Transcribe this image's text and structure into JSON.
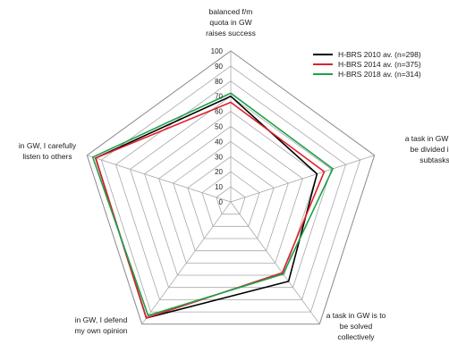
{
  "chart_data": {
    "type": "radar",
    "categories": [
      [
        "balanced f/m",
        "quota in GW",
        "raises success"
      ],
      [
        "a task in GW is to",
        "be divided into",
        "subtasks"
      ],
      [
        "a task in GW is to",
        "be solved",
        "collectively"
      ],
      [
        "in GW, I defend",
        "my own opinion"
      ],
      [
        "in GW, I carefully",
        "listen to others"
      ]
    ],
    "rlim": [
      0,
      100
    ],
    "ticks": [
      0,
      10,
      20,
      30,
      40,
      50,
      60,
      70,
      80,
      90,
      100
    ],
    "grid": true,
    "legend_position": "top-right",
    "series": [
      {
        "name": "H-BRS 2010 av. (n=298)",
        "color": "#000000",
        "values": [
          70,
          60,
          65,
          95,
          94
        ]
      },
      {
        "name": "H-BRS 2014 av. (n=375)",
        "color": "#e0202a",
        "values": [
          66,
          65,
          58,
          95,
          94
        ]
      },
      {
        "name": "H-BRS 2018 av. (n=314)",
        "color": "#1fa04c",
        "values": [
          72,
          71,
          59,
          93,
          96
        ]
      }
    ]
  }
}
